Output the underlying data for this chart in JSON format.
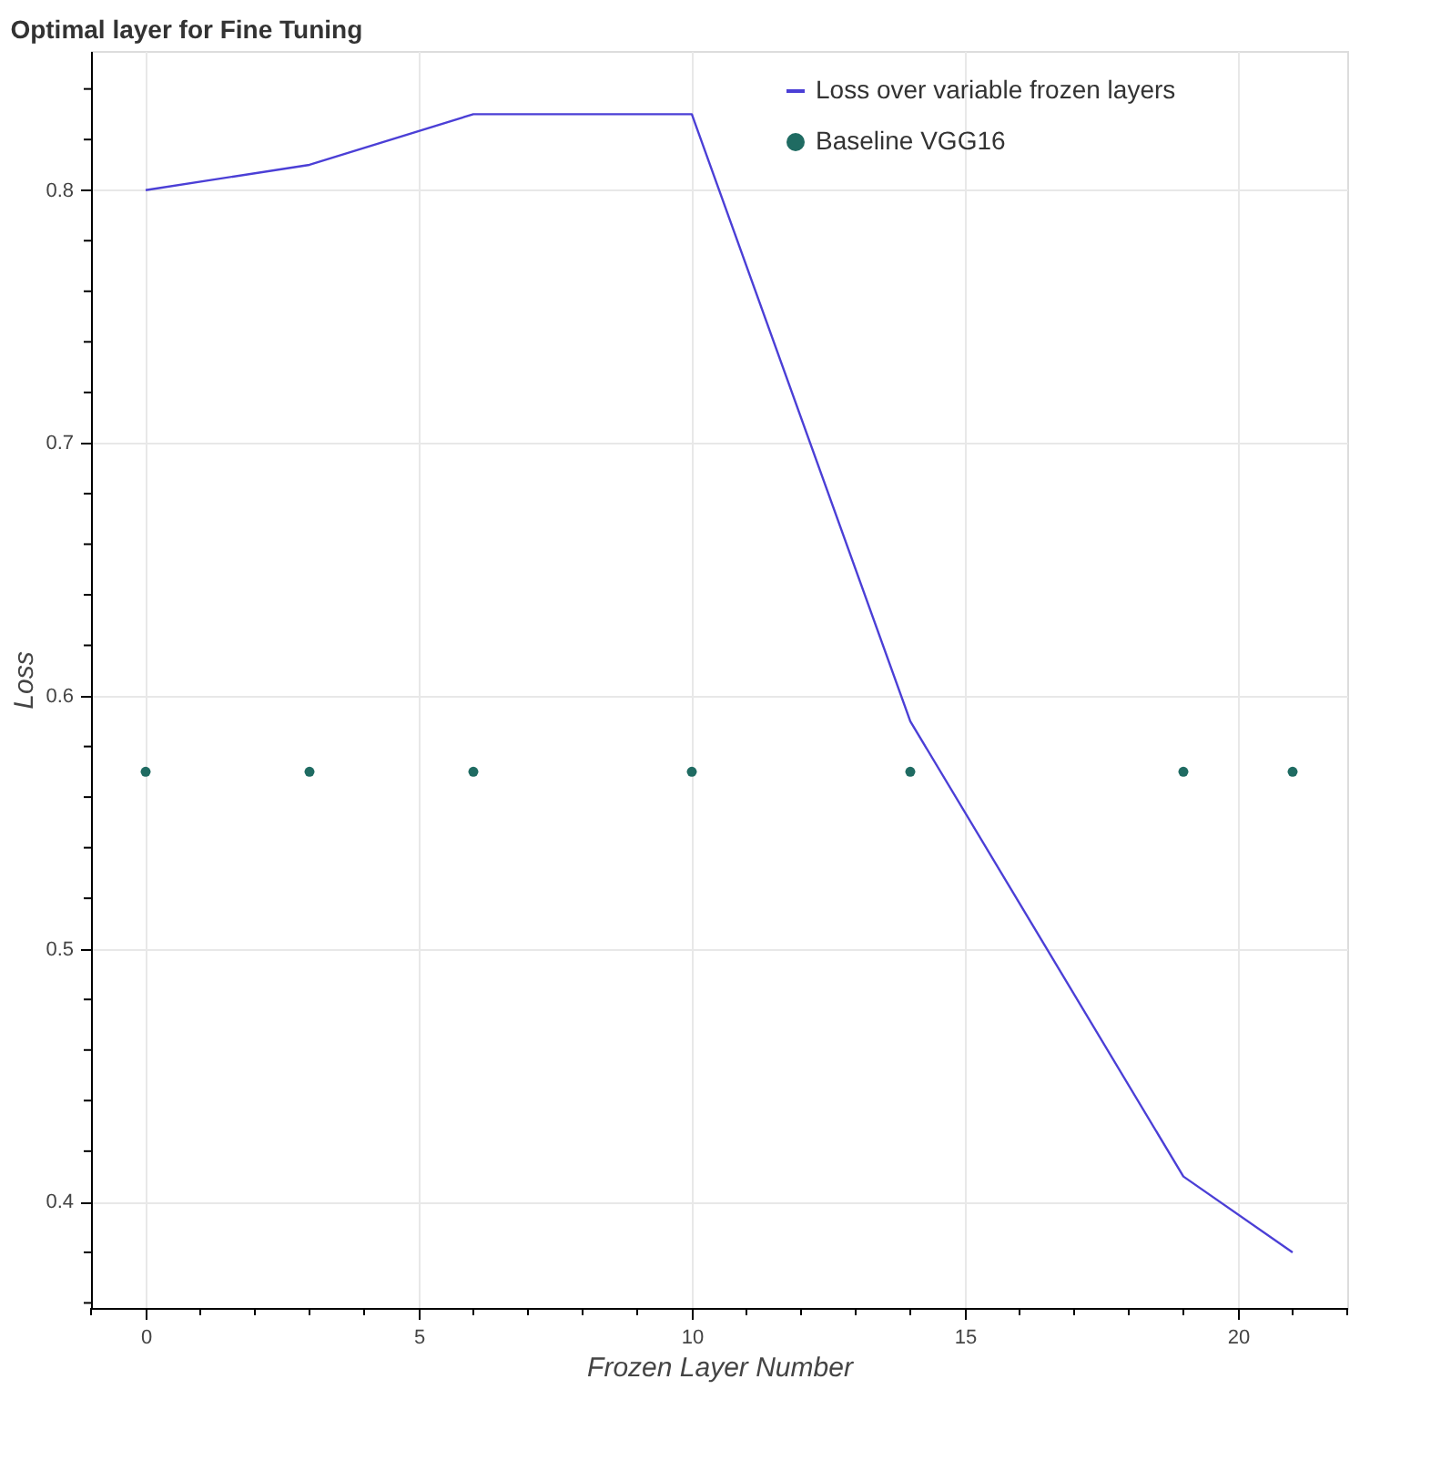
{
  "chart_data": {
    "type": "line",
    "title": "Optimal layer for Fine Tuning",
    "xlabel": "Frozen Layer Number",
    "ylabel": "Loss",
    "x": [
      0,
      3,
      6,
      10,
      14,
      19,
      21
    ],
    "series": [
      {
        "name": "Loss over variable frozen layers",
        "color": "#4b3fd6",
        "values": [
          0.8,
          0.81,
          0.83,
          0.83,
          0.59,
          0.41,
          0.38
        ]
      },
      {
        "name": "Baseline VGG16",
        "type": "scatter",
        "marker": "circle",
        "color": "#1f6b62",
        "values": [
          0.57,
          0.57,
          0.57,
          0.57,
          0.57,
          0.57,
          0.57
        ]
      }
    ],
    "xlim": [
      -1,
      22
    ],
    "xticks": [
      {
        "value": -1,
        "label": null
      },
      0,
      {
        "value": 1,
        "label": null
      },
      {
        "value": 2,
        "label": null
      },
      {
        "value": 3,
        "label": null
      },
      {
        "value": 4,
        "label": null
      },
      5,
      {
        "value": 6,
        "label": null
      },
      {
        "value": 7,
        "label": null
      },
      {
        "value": 8,
        "label": null
      },
      {
        "value": 9,
        "label": null
      },
      10,
      {
        "value": 11,
        "label": null
      },
      {
        "value": 12,
        "label": null
      },
      {
        "value": 13,
        "label": null
      },
      {
        "value": 14,
        "label": null
      },
      15,
      {
        "value": 16,
        "label": null
      },
      {
        "value": 17,
        "label": null
      },
      {
        "value": 18,
        "label": null
      },
      {
        "value": 19,
        "label": null
      },
      20,
      {
        "value": 21,
        "label": null
      },
      {
        "value": 22,
        "label": null
      }
    ],
    "ylim": [
      0.358,
      0.855
    ],
    "yticks": [
      {
        "value": 0.36,
        "label": null
      },
      {
        "value": 0.38,
        "label": null
      },
      0.4,
      {
        "value": 0.42,
        "label": null
      },
      {
        "value": 0.44,
        "label": null
      },
      {
        "value": 0.46,
        "label": null
      },
      {
        "value": 0.48,
        "label": null
      },
      0.5,
      {
        "value": 0.52,
        "label": null
      },
      {
        "value": 0.54,
        "label": null
      },
      {
        "value": 0.56,
        "label": null
      },
      {
        "value": 0.58,
        "label": null
      },
      0.6,
      {
        "value": 0.62,
        "label": null
      },
      {
        "value": 0.64,
        "label": null
      },
      {
        "value": 0.66,
        "label": null
      },
      {
        "value": 0.68,
        "label": null
      },
      0.7,
      {
        "value": 0.72,
        "label": null
      },
      {
        "value": 0.74,
        "label": null
      },
      {
        "value": 0.76,
        "label": null
      },
      {
        "value": 0.78,
        "label": null
      },
      0.8,
      {
        "value": 0.82,
        "label": null
      },
      {
        "value": 0.84,
        "label": null
      }
    ],
    "grid": true,
    "legend": "top right"
  }
}
